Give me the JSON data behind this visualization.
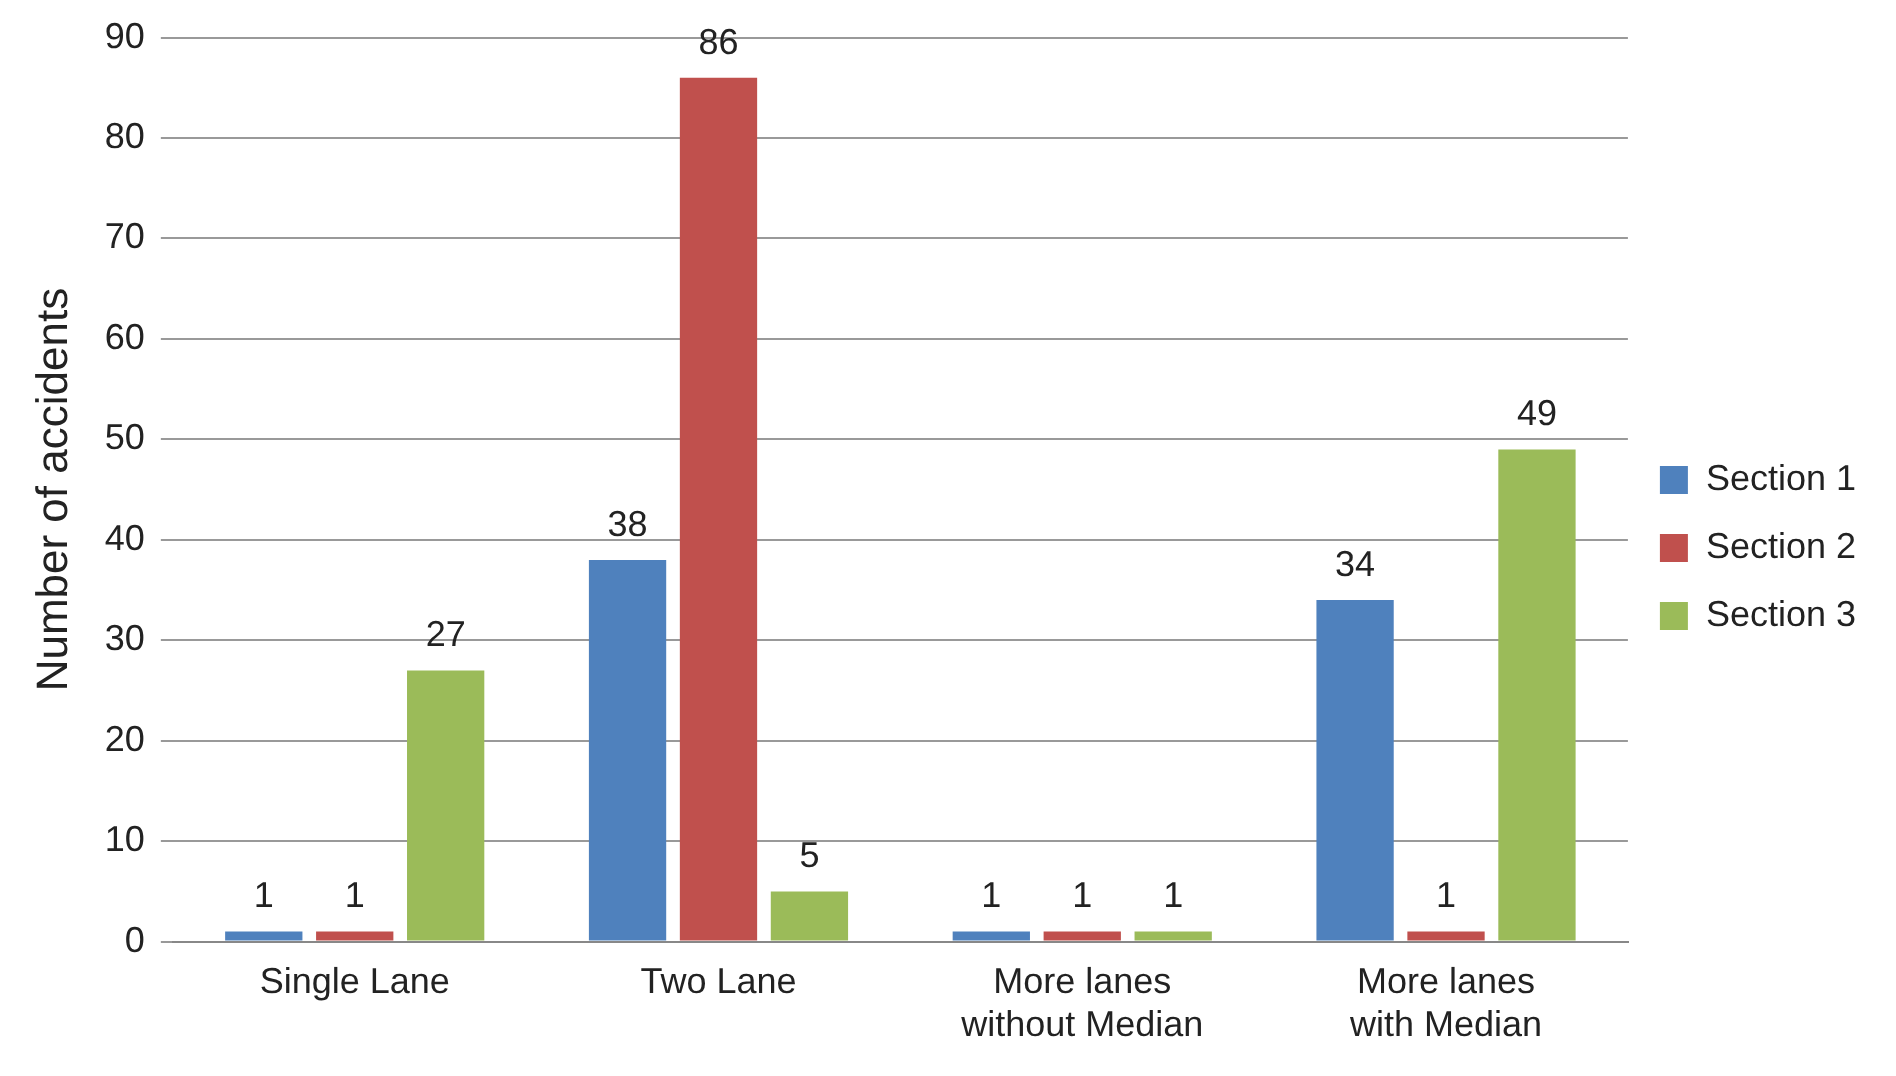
{
  "chart_data": {
    "type": "bar",
    "ylabel": "Number of accidents",
    "categories": [
      "Single Lane",
      "Two Lane",
      "More lanes without Median",
      "More lanes with Median"
    ],
    "series": [
      {
        "name": "Section 1",
        "color": "#4f81bd",
        "values": [
          1,
          38,
          1,
          34
        ]
      },
      {
        "name": "Section 2",
        "color": "#c0504d",
        "values": [
          1,
          86,
          1,
          1
        ]
      },
      {
        "name": "Section 3",
        "color": "#9bbb59",
        "values": [
          27,
          5,
          1,
          49
        ]
      }
    ],
    "ylim": [
      0,
      90
    ],
    "yticks": [
      0,
      10,
      20,
      30,
      40,
      50,
      60,
      70,
      80,
      90
    ],
    "grid": "y",
    "legend": "right",
    "data_labels": true
  }
}
